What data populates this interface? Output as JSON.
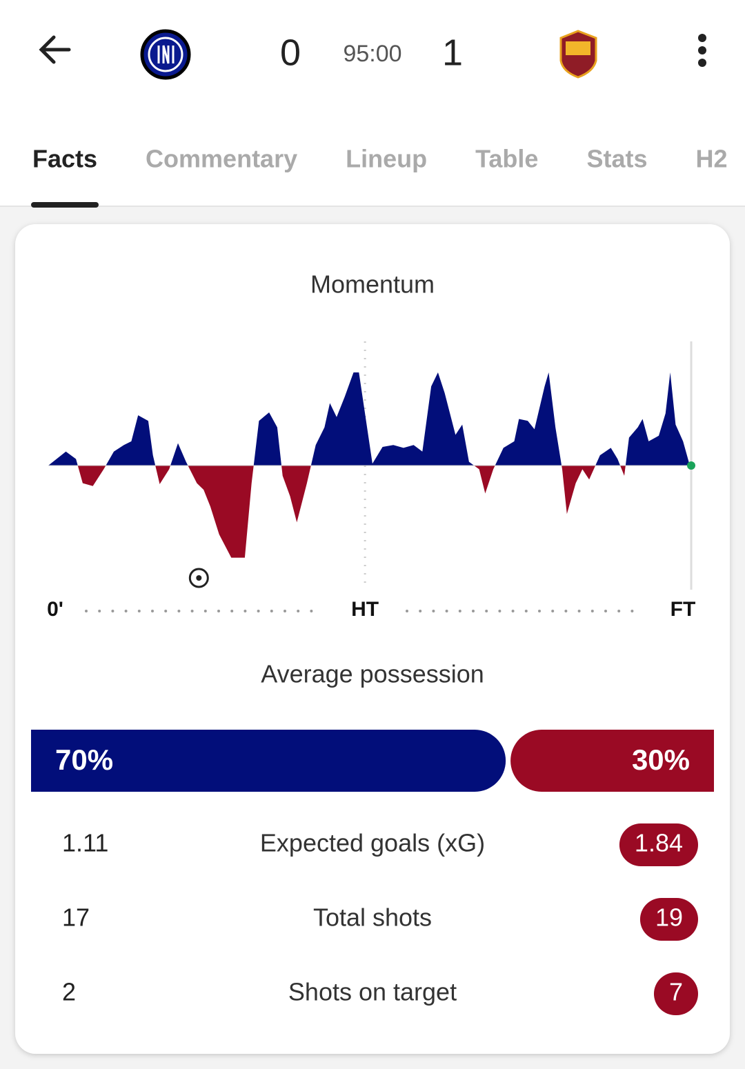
{
  "header": {
    "home_score": "0",
    "clock": "95:00",
    "away_score": "1"
  },
  "tabs": [
    "Facts",
    "Commentary",
    "Lineup",
    "Table",
    "Stats",
    "H2"
  ],
  "momentum": {
    "type": "area",
    "title": "Momentum",
    "x": [
      0,
      2.6,
      4.1,
      5.1,
      6.6,
      8.2,
      9.7,
      11.2,
      12.3,
      13.3,
      14.8,
      15.5,
      16.5,
      17.9,
      19.2,
      20.4,
      22,
      23,
      24,
      25.3,
      27.1,
      29.1,
      30.1,
      31.2,
      32.7,
      33.9,
      34.7,
      35.8,
      36.8,
      38.3,
      39.6,
      40.9,
      41.7,
      42.7,
      43.9,
      45.2,
      46,
      48,
      49.5,
      51.1,
      52.6,
      54.1,
      55.4,
      56.7,
      57.7,
      58.7,
      60.3,
      61.3,
      62.3,
      63.8,
      64.7,
      65.9,
      67.4,
      69,
      69.7,
      71,
      72,
      73.5,
      74.1,
      75.1,
      76.1,
      76.8,
      78.1,
      79.1,
      80.1,
      81.7,
      83.3,
      84.3,
      85.3,
      86,
      87.3,
      88,
      88.9,
      90.4,
      91.4,
      92.1,
      92.9,
      94,
      95
    ],
    "values": [
      0,
      15,
      7,
      -19,
      -22,
      -4,
      15,
      22,
      26,
      54,
      48,
      11,
      -20,
      -4,
      24,
      4,
      -19,
      -26,
      -44,
      -74,
      -99,
      -99,
      -19,
      48,
      57,
      41,
      -11,
      -33,
      -61,
      -19,
      22,
      41,
      67,
      52,
      74,
      100,
      100,
      2,
      20,
      22,
      19,
      22,
      15,
      85,
      100,
      78,
      33,
      44,
      4,
      -4,
      -30,
      -4,
      19,
      26,
      50,
      48,
      39,
      85,
      100,
      41,
      -4,
      -52,
      -19,
      -4,
      -15,
      11,
      19,
      7,
      -11,
      30,
      41,
      50,
      26,
      32,
      56,
      100,
      44,
      26,
      0
    ],
    "xlim": [
      0,
      95
    ],
    "ylim": [
      -100,
      100
    ],
    "half_time": 46.9,
    "goal_minute": 22.3,
    "positive_color": "#020e7a",
    "negative_color": "#9a0a24",
    "axis_labels": [
      "0'",
      "HT",
      "FT"
    ]
  },
  "possession": {
    "title": "Average possession",
    "values": [
      70,
      30
    ],
    "value_labels": [
      "70%",
      "30%"
    ],
    "colors": [
      "#020e7a",
      "#9a0a24"
    ]
  },
  "stats": [
    {
      "home": "1.11",
      "label": "Expected goals (xG)",
      "away": "1.84"
    },
    {
      "home": "17",
      "label": "Total shots",
      "away": "19"
    },
    {
      "home": "2",
      "label": "Shots on target",
      "away": "7"
    }
  ]
}
